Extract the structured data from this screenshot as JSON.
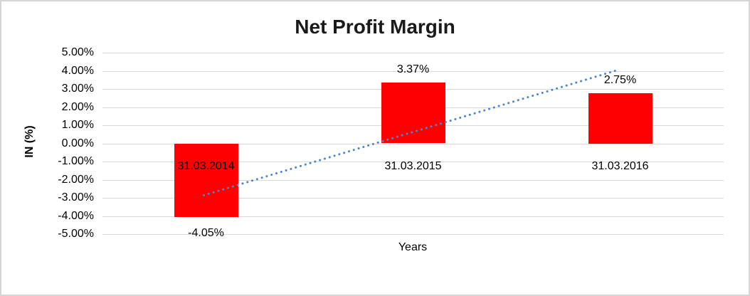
{
  "chart_data": {
    "type": "bar",
    "title": "Net Profit Margin",
    "xlabel": "Years",
    "ylabel": "IN (%)",
    "categories": [
      "31.03.2014",
      "31.03.2015",
      "31.03.2016"
    ],
    "values": [
      -4.05,
      3.37,
      2.75
    ],
    "value_labels": [
      "-4.05%",
      "3.37%",
      "2.75%"
    ],
    "ylim": [
      -5,
      5
    ],
    "ytick_step": 1,
    "ytick_labels": [
      "5.00%",
      "4.00%",
      "3.00%",
      "2.00%",
      "1.00%",
      "0.00%",
      "-1.00%",
      "-2.00%",
      "-3.00%",
      "-4.00%",
      "-5.00%"
    ],
    "grid": true,
    "legend": "none",
    "bar_color": "#FF0000",
    "trendline": {
      "style": "dotted",
      "color": "#4A86C8",
      "start": {
        "category_index": 0,
        "value": -2.86
      },
      "end": {
        "category_index": 2,
        "value": 4.0
      }
    }
  },
  "frame": {
    "background": "#FFFFFF",
    "border_color": "#D6D6D6",
    "gridline_color": "#D9D9D9",
    "title_color": "#1A1A1A",
    "text_color": "#000000"
  }
}
